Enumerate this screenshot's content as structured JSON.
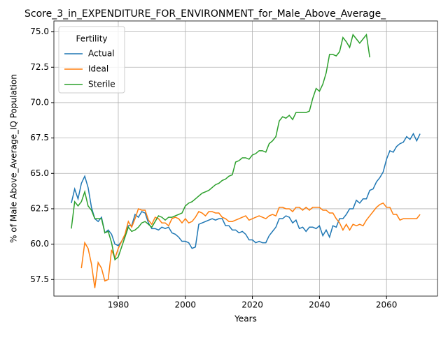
{
  "chart_data": {
    "type": "line",
    "title": "Score_3_in_EXPENDITURE_FOR_ENVIRONMENT_for_Male_Above_Average_",
    "xlabel": "Years",
    "ylabel": "% of Male Above_Average_IQ Population",
    "x": [
      1966,
      1967,
      1968,
      1969,
      1970,
      1971,
      1972,
      1973,
      1974,
      1975,
      1976,
      1977,
      1978,
      1979,
      1980,
      1981,
      1982,
      1983,
      1984,
      1985,
      1986,
      1987,
      1988,
      1989,
      1990,
      1991,
      1992,
      1993,
      1994,
      1995,
      1996,
      1997,
      1998,
      1999,
      2000,
      2001,
      2002,
      2003,
      2004,
      2005,
      2006,
      2007,
      2008,
      2009,
      2010,
      2011,
      2012,
      2013,
      2014,
      2015,
      2016,
      2017,
      2018,
      2019,
      2020,
      2021,
      2022,
      2023,
      2024,
      2025,
      2026,
      2027,
      2028,
      2029,
      2030,
      2031,
      2032,
      2033,
      2034,
      2035,
      2036,
      2037,
      2038,
      2039,
      2040,
      2041,
      2042,
      2043,
      2044,
      2045,
      2046,
      2047,
      2048,
      2049,
      2050,
      2051,
      2052,
      2053,
      2054,
      2055,
      2056,
      2057,
      2058,
      2059,
      2060,
      2061,
      2062,
      2063,
      2064,
      2065,
      2066,
      2067,
      2068,
      2069,
      2070
    ],
    "series": [
      {
        "name": "Actual",
        "color": "#1f77b4",
        "values": [
          62.9,
          63.9,
          63.2,
          64.3,
          64.8,
          64.0,
          62.6,
          61.8,
          61.6,
          61.9,
          60.8,
          61.0,
          60.7,
          60.0,
          59.9,
          60.2,
          60.6,
          61.3,
          61.3,
          62.1,
          61.9,
          62.3,
          62.2,
          61.5,
          61.1,
          61.1,
          61.0,
          61.2,
          61.1,
          61.2,
          60.8,
          60.7,
          60.5,
          60.2,
          60.2,
          60.1,
          59.7,
          59.8,
          61.4,
          61.5,
          61.6,
          61.7,
          61.8,
          61.7,
          61.8,
          61.8,
          61.3,
          61.3,
          61.0,
          61.0,
          60.8,
          60.9,
          60.7,
          60.3,
          60.3,
          60.1,
          60.2,
          60.1,
          60.1,
          60.6,
          60.9,
          61.2,
          61.8,
          61.8,
          62.0,
          61.9,
          61.5,
          61.7,
          61.1,
          61.2,
          60.9,
          61.2,
          61.2,
          61.1,
          61.3,
          60.6,
          61.0,
          60.5,
          61.3,
          61.2,
          61.8,
          61.8,
          62.1,
          62.5,
          62.5,
          63.1,
          62.9,
          63.2,
          63.2,
          63.8,
          63.9,
          64.4,
          64.7,
          65.1,
          66.0,
          66.6,
          66.5,
          66.9,
          67.1,
          67.2,
          67.6,
          67.4,
          67.8,
          67.3,
          67.8
        ]
      },
      {
        "name": "Ideal",
        "color": "#ff7f0e",
        "values": [
          null,
          null,
          null,
          58.3,
          60.1,
          59.7,
          58.6,
          56.9,
          58.7,
          58.3,
          57.4,
          57.5,
          59.6,
          59.0,
          59.7,
          60.2,
          60.7,
          61.6,
          61.2,
          61.8,
          62.5,
          62.4,
          62.4,
          61.7,
          61.4,
          61.9,
          61.8,
          61.5,
          61.5,
          61.3,
          61.8,
          61.9,
          61.8,
          61.5,
          61.8,
          61.5,
          61.6,
          61.9,
          62.3,
          62.2,
          62.0,
          62.3,
          62.3,
          62.2,
          62.2,
          61.9,
          61.8,
          61.6,
          61.6,
          61.7,
          61.8,
          61.9,
          62.0,
          61.7,
          61.8,
          61.9,
          62.0,
          61.9,
          61.8,
          62.0,
          62.1,
          62.0,
          62.6,
          62.6,
          62.5,
          62.5,
          62.3,
          62.6,
          62.6,
          62.4,
          62.6,
          62.4,
          62.6,
          62.6,
          62.6,
          62.4,
          62.4,
          62.2,
          62.2,
          61.8,
          61.5,
          61.0,
          61.4,
          61.0,
          61.4,
          61.3,
          61.4,
          61.3,
          61.7,
          62.0,
          62.3,
          62.6,
          62.8,
          62.9,
          62.6,
          62.6,
          62.1,
          62.1,
          61.7,
          61.8,
          61.8,
          61.8,
          61.8,
          61.8,
          62.1
        ]
      },
      {
        "name": "Sterile",
        "color": "#2ca02c",
        "values": [
          61.1,
          63.0,
          62.7,
          63.0,
          63.7,
          62.7,
          62.4,
          61.8,
          61.8,
          61.8,
          60.8,
          60.9,
          60.1,
          58.9,
          59.1,
          59.8,
          60.5,
          61.2,
          60.9,
          61.0,
          61.2,
          61.5,
          61.6,
          61.4,
          61.2,
          61.6,
          62.0,
          61.9,
          61.7,
          61.9,
          61.9,
          62.0,
          62.1,
          62.2,
          62.7,
          62.9,
          63.0,
          63.2,
          63.4,
          63.6,
          63.7,
          63.8,
          64.0,
          64.2,
          64.3,
          64.5,
          64.6,
          64.8,
          64.9,
          65.8,
          65.9,
          66.1,
          66.1,
          66.0,
          66.3,
          66.4,
          66.6,
          66.6,
          66.5,
          67.1,
          67.3,
          67.6,
          68.7,
          69.0,
          68.9,
          69.1,
          68.8,
          69.3,
          69.3,
          69.3,
          69.3,
          69.4,
          70.3,
          71.0,
          70.8,
          71.3,
          72.1,
          73.4,
          73.4,
          73.3,
          73.6,
          74.6,
          74.3,
          73.9,
          74.8,
          74.5,
          74.2,
          74.5,
          74.8,
          73.2,
          null,
          null,
          null,
          null,
          null,
          null,
          null,
          null,
          null,
          null,
          null,
          null,
          null,
          null,
          null
        ]
      }
    ],
    "xlim": [
      1960.8,
      2075.2
    ],
    "ylim": [
      56.33,
      75.77
    ],
    "xticks": [
      1980,
      2000,
      2020,
      2040,
      2060
    ],
    "yticks": [
      57.5,
      {
        "value": 60,
        "label": "60.0"
      },
      62.5,
      {
        "value": 65,
        "label": "65.0"
      },
      67.5,
      {
        "value": 70,
        "label": "70.0"
      },
      72.5,
      {
        "value": 75,
        "label": "75.0"
      }
    ],
    "grid": true,
    "legend": {
      "title": "Fertility",
      "loc": "upper left"
    }
  }
}
